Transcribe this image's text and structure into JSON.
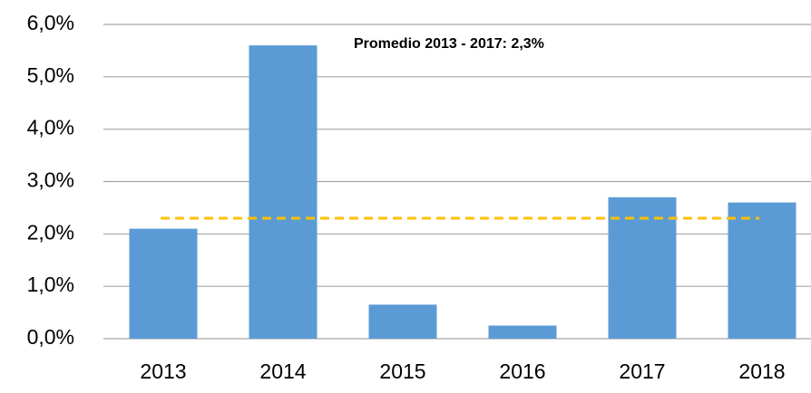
{
  "chart_data": {
    "type": "bar",
    "categories": [
      "2013",
      "2014",
      "2015",
      "2016",
      "2017",
      "2018"
    ],
    "values": [
      2.1,
      5.6,
      0.65,
      0.25,
      2.7,
      2.6
    ],
    "color": "#5b9bd5",
    "ylim": [
      0,
      6
    ],
    "yticks": [
      {
        "value": 0,
        "label": "0,0%"
      },
      {
        "value": 1,
        "label": "1,0%"
      },
      {
        "value": 2,
        "label": "2,0%"
      },
      {
        "value": 3,
        "label": "3,0%"
      },
      {
        "value": 4,
        "label": "4,0%"
      },
      {
        "value": 5,
        "label": "5,0%"
      },
      {
        "value": 6,
        "label": "6,0%"
      }
    ],
    "grid": true,
    "average": {
      "value": 2.3,
      "color": "#ffc000"
    },
    "annotation": "Promedio 2013 - 2017:  2,3%"
  }
}
